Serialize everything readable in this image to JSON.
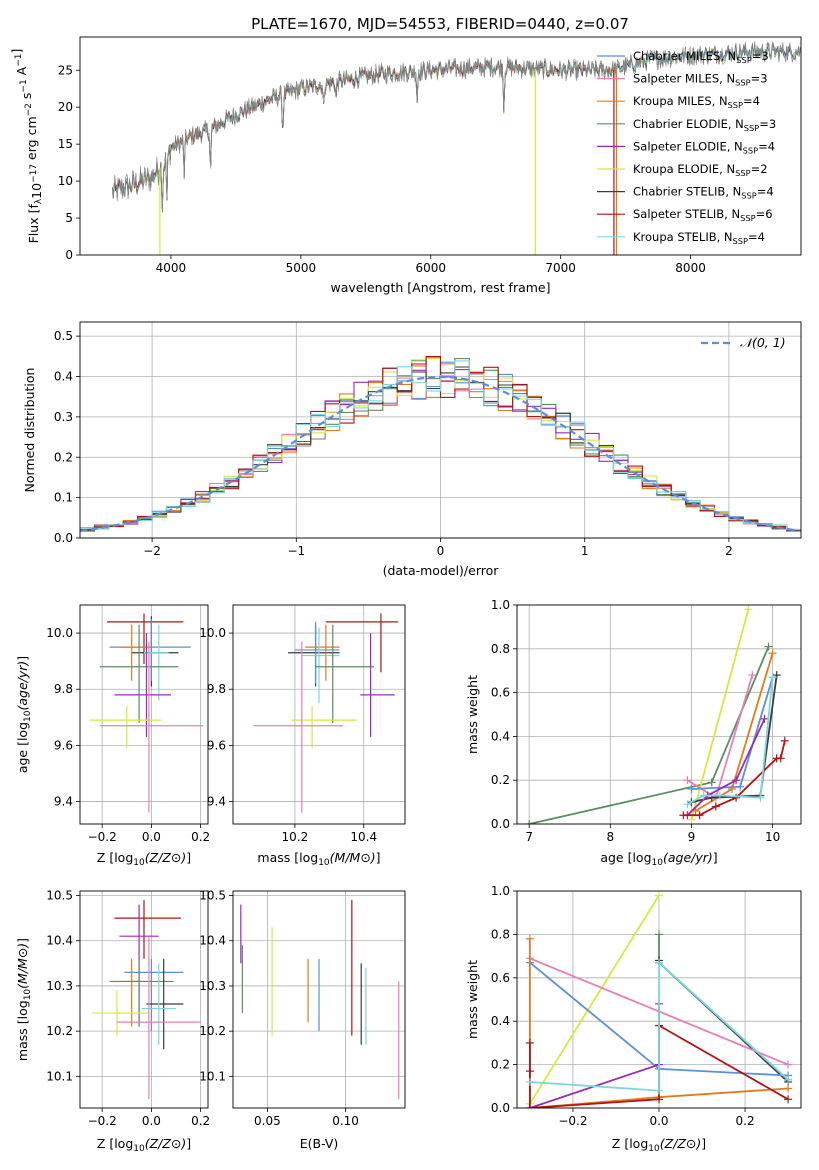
{
  "colors": {
    "Chabrier MILES": "#5b8fd6",
    "Salpeter MILES": "#e87fb6",
    "Kroupa MILES": "#e07b1e",
    "Chabrier ELODIE": "#5e8e5e",
    "Salpeter ELODIE": "#9b2bb5",
    "Kroupa ELODIE": "#d6e83f",
    "Chabrier STELIB": "#3b3b3b",
    "Salpeter STELIB": "#b01414",
    "Kroupa STELIB": "#7dd6df",
    "normal": "#5b8fd6",
    "spectrum_gray": "#7f7f7f"
  },
  "chart_data": [
    {
      "id": "spectrum",
      "type": "line",
      "title": "PLATE=1670, MJD=54553, FIBERID=0440, z=0.07",
      "xlabel": "wavelength [Angstrom, rest frame]",
      "ylabel": "Flux [f_λ10^-17 erg cm^-2 s^-1 A^-1]",
      "xlim": [
        3300,
        8850
      ],
      "ylim": [
        0,
        29.5
      ],
      "xticks": [
        4000,
        5000,
        6000,
        7000,
        8000
      ],
      "yticks": [
        0,
        5,
        10,
        15,
        20,
        25
      ],
      "grid": false,
      "legend_position": "top-right",
      "legend": [
        {
          "model": "Chabrier MILES",
          "text": "Chabrier MILES, N",
          "sub": "SSP",
          "n": "=3"
        },
        {
          "model": "Salpeter MILES",
          "text": "Salpeter MILES, N",
          "sub": "SSP",
          "n": "=3"
        },
        {
          "model": "Kroupa MILES",
          "text": "Kroupa MILES, N",
          "sub": "SSP",
          "n": "=4"
        },
        {
          "model": "Chabrier ELODIE",
          "text": "Chabrier ELODIE, N",
          "sub": "SSP",
          "n": "=3"
        },
        {
          "model": "Salpeter ELODIE",
          "text": "Salpeter ELODIE, N",
          "sub": "SSP",
          "n": "=4"
        },
        {
          "model": "Kroupa ELODIE",
          "text": "Kroupa ELODIE, N",
          "sub": "SSP",
          "n": "=2"
        },
        {
          "model": "Chabrier STELIB",
          "text": "Chabrier STELIB, N",
          "sub": "SSP",
          "n": "=4"
        },
        {
          "model": "Salpeter STELIB",
          "text": "Salpeter STELIB, N",
          "sub": "SSP",
          "n": "=6"
        },
        {
          "model": "Kroupa STELIB",
          "text": "Kroupa STELIB, N",
          "sub": "SSP",
          "n": "=4"
        }
      ],
      "continuum": [
        [
          3550,
          8.5
        ],
        [
          3700,
          9.5
        ],
        [
          3850,
          10.5
        ],
        [
          3950,
          12.5
        ],
        [
          4000,
          14.5
        ],
        [
          4150,
          16
        ],
        [
          4300,
          17
        ],
        [
          4500,
          19
        ],
        [
          4750,
          21
        ],
        [
          5000,
          22.5
        ],
        [
          5300,
          23.5
        ],
        [
          5600,
          24.5
        ],
        [
          6000,
          25
        ],
        [
          6500,
          25.5
        ],
        [
          7000,
          25
        ],
        [
          7400,
          25
        ],
        [
          7700,
          26.5
        ],
        [
          8000,
          27
        ],
        [
          8400,
          27.5
        ],
        [
          8850,
          27.5
        ]
      ],
      "absorption_lines": [
        [
          3934,
          5.5
        ],
        [
          3969,
          6
        ],
        [
          4102,
          4.5
        ],
        [
          4304,
          6
        ],
        [
          4861,
          5
        ],
        [
          5175,
          3
        ],
        [
          5270,
          2
        ],
        [
          5895,
          4
        ],
        [
          6563,
          6
        ]
      ],
      "sharp_drops": [
        {
          "model": "Kroupa ELODIE",
          "x": 3915,
          "depth": 0
        },
        {
          "model": "Kroupa ELODIE",
          "x": 6805,
          "depth": 0
        },
        {
          "model": "Salpeter STELIB",
          "x": 7410,
          "depth": 0
        },
        {
          "model": "Kroupa MILES",
          "x": 7430,
          "depth": 0
        }
      ]
    },
    {
      "id": "residuals",
      "type": "step",
      "xlabel": "(data-model)/error",
      "ylabel": "Normed distribution",
      "xlim": [
        -2.5,
        2.5
      ],
      "ylim": [
        0,
        0.535
      ],
      "xticks": [
        -2,
        -1,
        0,
        1,
        2
      ],
      "yticks": [
        0.0,
        0.1,
        0.2,
        0.3,
        0.4,
        0.5
      ],
      "grid": true,
      "bin_width": 0.1,
      "legend_position": "top-right",
      "legend": [
        {
          "text": "𝒩(0, 1)"
        }
      ],
      "normal_curve": {
        "mean": 0,
        "sigma": 1,
        "style": "dashed"
      }
    },
    {
      "id": "age_vs_Z",
      "type": "errorbar",
      "xlabel": "Z [log10(Z/Z⊙)]",
      "ylabel": "age  [log10(age/yr)]",
      "xlim": [
        -0.29,
        0.23
      ],
      "ylim": [
        9.32,
        10.1
      ],
      "xticks": [
        -0.2,
        0.0,
        0.2
      ],
      "yticks": [
        9.4,
        9.6,
        9.8,
        10.0
      ],
      "grid": true,
      "points": [
        {
          "model": "Salpeter STELIB",
          "x": -0.03,
          "xerr": [
            0.15,
            0.16
          ],
          "y": 10.04,
          "yerr": [
            0.15,
            0.03
          ]
        },
        {
          "model": "Chabrier STELIB",
          "x": 0.0,
          "xerr": [
            0.08,
            0.11
          ],
          "y": 9.93,
          "yerr": [
            0.12,
            0.13
          ]
        },
        {
          "model": "Chabrier MILES",
          "x": 0.0,
          "xerr": [
            0.17,
            0.16
          ],
          "y": 9.95,
          "yerr": [
            0.12,
            0.1
          ]
        },
        {
          "model": "Kroupa MILES",
          "x": -0.08,
          "xerr": [
            0.05,
            0.08
          ],
          "y": 9.95,
          "yerr": [
            0.12,
            0.08
          ]
        },
        {
          "model": "Kroupa STELIB",
          "x": 0.03,
          "xerr": [
            0.06,
            0.04
          ],
          "y": 9.93,
          "yerr": [
            0.17,
            0.1
          ]
        },
        {
          "model": "Chabrier ELODIE",
          "x": -0.05,
          "xerr": [
            0.16,
            0.16
          ],
          "y": 9.88,
          "yerr": [
            0.2,
            0.15
          ]
        },
        {
          "model": "Salpeter ELODIE",
          "x": -0.02,
          "xerr": [
            0.13,
            0.1
          ],
          "y": 9.78,
          "yerr": [
            0.15,
            0.22
          ]
        },
        {
          "model": "Kroupa ELODIE",
          "x": -0.1,
          "xerr": [
            0.15,
            0.14
          ],
          "y": 9.69,
          "yerr": [
            0.1,
            0.05
          ]
        },
        {
          "model": "Salpeter MILES",
          "x": -0.01,
          "xerr": [
            0.2,
            0.22
          ],
          "y": 9.67,
          "yerr": [
            0.31,
            0.3
          ]
        }
      ]
    },
    {
      "id": "age_vs_mass",
      "type": "errorbar",
      "xlabel": "mass [log10(M/M⊙)]",
      "ylabel": "",
      "xlim": [
        10.02,
        10.52
      ],
      "ylim": [
        9.32,
        10.1
      ],
      "xticks": [
        10.2,
        10.4
      ],
      "yticks": [
        9.4,
        9.6,
        9.8,
        10.0
      ],
      "grid": true,
      "points": [
        {
          "model": "Salpeter STELIB",
          "x": 10.45,
          "xerr": [
            0.16,
            0.05
          ],
          "y": 10.04,
          "yerr": [
            0.18,
            0.03
          ]
        },
        {
          "model": "Chabrier STELIB",
          "x": 10.26,
          "xerr": [
            0.08,
            0.07
          ],
          "y": 9.93,
          "yerr": [
            0.12,
            0.1
          ]
        },
        {
          "model": "Chabrier MILES",
          "x": 10.26,
          "xerr": [
            0.06,
            0.07
          ],
          "y": 9.94,
          "yerr": [
            0.12,
            0.1
          ]
        },
        {
          "model": "Kroupa MILES",
          "x": 10.29,
          "xerr": [
            0.06,
            0.04
          ],
          "y": 9.95,
          "yerr": [
            0.12,
            0.08
          ]
        },
        {
          "model": "Kroupa STELIB",
          "x": 10.27,
          "xerr": [
            0.05,
            0.06
          ],
          "y": 9.92,
          "yerr": [
            0.17,
            0.1
          ]
        },
        {
          "model": "Chabrier ELODIE",
          "x": 10.31,
          "xerr": [
            0.05,
            0.12
          ],
          "y": 9.88,
          "yerr": [
            0.2,
            0.15
          ]
        },
        {
          "model": "Salpeter ELODIE",
          "x": 10.42,
          "xerr": [
            0.03,
            0.07
          ],
          "y": 9.78,
          "yerr": [
            0.15,
            0.22
          ]
        },
        {
          "model": "Kroupa ELODIE",
          "x": 10.25,
          "xerr": [
            0.06,
            0.13
          ],
          "y": 9.69,
          "yerr": [
            0.1,
            0.05
          ]
        },
        {
          "model": "Salpeter MILES",
          "x": 10.22,
          "xerr": [
            0.14,
            0.12
          ],
          "y": 9.67,
          "yerr": [
            0.31,
            0.3
          ]
        }
      ]
    },
    {
      "id": "mass_weight_vs_age",
      "type": "line",
      "xlabel": "age  [log10(age/yr)]",
      "ylabel": "mass weight",
      "xlim": [
        6.85,
        10.35
      ],
      "ylim": [
        0,
        1.0
      ],
      "xticks": [
        7,
        8,
        9,
        10
      ],
      "yticks": [
        0.0,
        0.2,
        0.4,
        0.6,
        0.8,
        1.0
      ],
      "grid": true,
      "series": [
        {
          "model": "Chabrier ELODIE",
          "x": [
            7.0,
            9.25,
            9.95
          ],
          "y": [
            0.0,
            0.19,
            0.81
          ]
        },
        {
          "model": "Kroupa ELODIE",
          "x": [
            9.0,
            9.7
          ],
          "y": [
            0.02,
            0.98
          ]
        },
        {
          "model": "Kroupa MILES",
          "x": [
            9.05,
            9.5,
            10.0
          ],
          "y": [
            0.06,
            0.16,
            0.78
          ]
        },
        {
          "model": "Salpeter MILES",
          "x": [
            8.95,
            9.3,
            9.75
          ],
          "y": [
            0.2,
            0.12,
            0.68
          ]
        },
        {
          "model": "Chabrier MILES",
          "x": [
            9.0,
            9.6,
            10.0
          ],
          "y": [
            0.16,
            0.17,
            0.67
          ]
        },
        {
          "model": "Chabrier STELIB",
          "x": [
            9.0,
            9.25,
            9.85,
            10.05
          ],
          "y": [
            0.1,
            0.12,
            0.13,
            0.68
          ]
        },
        {
          "model": "Salpeter ELODIE",
          "x": [
            8.95,
            9.2,
            9.55,
            9.9
          ],
          "y": [
            0.04,
            0.13,
            0.2,
            0.48
          ]
        },
        {
          "model": "Salpeter STELIB",
          "x": [
            8.9,
            9.1,
            9.3,
            9.55,
            10.05,
            10.1,
            10.15
          ],
          "y": [
            0.04,
            0.04,
            0.08,
            0.12,
            0.3,
            0.3,
            0.38
          ]
        },
        {
          "model": "Kroupa STELIB",
          "x": [
            8.95,
            9.15,
            9.35,
            9.85,
            10.0
          ],
          "y": [
            0.09,
            0.13,
            0.13,
            0.12,
            0.67
          ]
        }
      ]
    },
    {
      "id": "mass_vs_Z",
      "type": "errorbar",
      "xlabel": "Z [log10(Z/Z⊙)]",
      "ylabel": "mass [log10(M/M⊙)]",
      "xlim": [
        -0.29,
        0.23
      ],
      "ylim": [
        10.03,
        10.51
      ],
      "xticks": [
        -0.2,
        0.0,
        0.2
      ],
      "yticks": [
        10.1,
        10.2,
        10.3,
        10.4,
        10.5
      ],
      "grid": true,
      "points": [
        {
          "model": "Salpeter STELIB",
          "x": -0.03,
          "xerr": [
            0.12,
            0.15
          ],
          "y": 10.45,
          "yerr": [
            0.09,
            0.04
          ]
        },
        {
          "model": "Salpeter ELODIE",
          "x": -0.05,
          "xerr": [
            0.08,
            0.08
          ],
          "y": 10.41,
          "yerr": [
            0.2,
            0.07
          ]
        },
        {
          "model": "Chabrier MILES",
          "x": 0.0,
          "xerr": [
            0.11,
            0.13
          ],
          "y": 10.33,
          "yerr": [
            0.13,
            0.03
          ]
        },
        {
          "model": "Kroupa MILES",
          "x": -0.08,
          "xerr": [
            0.04,
            0.08
          ],
          "y": 10.31,
          "yerr": [
            0.1,
            0.05
          ]
        },
        {
          "model": "Chabrier ELODIE",
          "x": -0.05,
          "xerr": [
            0.12,
            0.14
          ],
          "y": 10.31,
          "yerr": [
            0.1,
            0.05
          ]
        },
        {
          "model": "Chabrier STELIB",
          "x": 0.05,
          "xerr": [
            0.07,
            0.08
          ],
          "y": 10.26,
          "yerr": [
            0.1,
            0.1
          ]
        },
        {
          "model": "Kroupa STELIB",
          "x": 0.03,
          "xerr": [
            0.07,
            0.07
          ],
          "y": 10.25,
          "yerr": [
            0.08,
            0.1
          ]
        },
        {
          "model": "Kroupa ELODIE",
          "x": -0.14,
          "xerr": [
            0.1,
            0.13
          ],
          "y": 10.24,
          "yerr": [
            0.05,
            0.05
          ]
        },
        {
          "model": "Salpeter MILES",
          "x": -0.01,
          "xerr": [
            0.13,
            0.21
          ],
          "y": 10.22,
          "yerr": [
            0.17,
            0.19
          ]
        }
      ]
    },
    {
      "id": "mass_vs_ebv",
      "type": "errorbar",
      "xlabel": "E(B-V)",
      "ylabel": "",
      "xlim": [
        0.028,
        0.138
      ],
      "ylim": [
        10.03,
        10.51
      ],
      "xticks": [
        0.05,
        0.1
      ],
      "yticks": [
        10.1,
        10.2,
        10.3,
        10.4,
        10.5
      ],
      "grid": true,
      "points": [
        {
          "model": "Salpeter ELODIE",
          "x": 0.033,
          "y": 10.41,
          "yerr": [
            0.06,
            0.07
          ]
        },
        {
          "model": "Chabrier ELODIE",
          "x": 0.034,
          "y": 10.33,
          "yerr": [
            0.09,
            0.06
          ]
        },
        {
          "model": "Kroupa ELODIE",
          "x": 0.053,
          "y": 10.3,
          "yerr": [
            0.11,
            0.13
          ]
        },
        {
          "model": "Kroupa MILES",
          "x": 0.076,
          "y": 10.29,
          "yerr": [
            0.07,
            0.07
          ]
        },
        {
          "model": "Chabrier MILES",
          "x": 0.083,
          "y": 10.28,
          "yerr": [
            0.08,
            0.08
          ]
        },
        {
          "model": "Salpeter STELIB",
          "x": 0.104,
          "y": 10.34,
          "yerr": [
            0.15,
            0.15
          ]
        },
        {
          "model": "Chabrier STELIB",
          "x": 0.11,
          "y": 10.26,
          "yerr": [
            0.09,
            0.09
          ]
        },
        {
          "model": "Kroupa STELIB",
          "x": 0.113,
          "y": 10.25,
          "yerr": [
            0.08,
            0.09
          ]
        },
        {
          "model": "Salpeter MILES",
          "x": 0.134,
          "y": 10.18,
          "yerr": [
            0.13,
            0.13
          ]
        }
      ]
    },
    {
      "id": "mass_weight_vs_Z",
      "type": "line",
      "xlabel": "Z [log10(Z/Z⊙)]",
      "ylabel": "mass weight",
      "xlim": [
        -0.33,
        0.33
      ],
      "ylim": [
        0,
        1.0
      ],
      "xticks": [
        -0.2,
        0.0,
        0.2
      ],
      "yticks": [
        0.0,
        0.2,
        0.4,
        0.6,
        0.8,
        1.0
      ],
      "grid": true,
      "series": [
        {
          "model": "Kroupa ELODIE",
          "x": [
            -0.3,
            0.0
          ],
          "y": [
            0.02,
            0.98
          ]
        },
        {
          "model": "Chabrier ELODIE",
          "x": [
            0.0,
            0.0,
            0.3
          ],
          "y": [
            0.8,
            0.67,
            0.13
          ]
        },
        {
          "model": "Chabrier STELIB",
          "x": [
            0.0,
            0.0,
            0.3
          ],
          "y": [
            0.68,
            0.67,
            0.12
          ]
        },
        {
          "model": "Salpeter MILES",
          "x": [
            -0.3,
            0.3
          ],
          "y": [
            0.69,
            0.2
          ]
        },
        {
          "model": "Chabrier MILES",
          "x": [
            -0.3,
            0.0,
            0.3
          ],
          "y": [
            0.67,
            0.18,
            0.15
          ]
        },
        {
          "model": "Kroupa MILES",
          "x": [
            -0.3,
            -0.3,
            0.0,
            0.3
          ],
          "y": [
            0.78,
            0.0,
            0.05,
            0.09
          ]
        },
        {
          "model": "Salpeter ELODIE",
          "x": [
            -0.3,
            0.0,
            0.0,
            0.0
          ],
          "y": [
            0.0,
            0.2,
            0.48,
            0.38
          ]
        },
        {
          "model": "Salpeter STELIB",
          "x": [
            -0.3,
            -0.3,
            -0.3,
            0.0,
            0.0,
            0.3
          ],
          "y": [
            0.3,
            0.17,
            0.0,
            0.04,
            0.38,
            0.04
          ]
        },
        {
          "model": "Kroupa STELIB",
          "x": [
            -0.3,
            0.0,
            0.0,
            0.3
          ],
          "y": [
            0.12,
            0.08,
            0.67,
            0.13
          ]
        }
      ]
    }
  ]
}
